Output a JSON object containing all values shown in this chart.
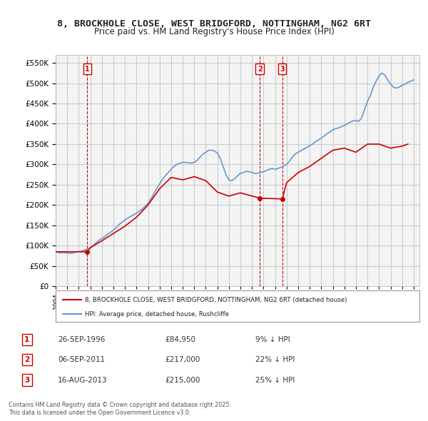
{
  "title": "8, BROCKHOLE CLOSE, WEST BRIDGFORD, NOTTINGHAM, NG2 6RT",
  "subtitle": "Price paid vs. HM Land Registry's House Price Index (HPI)",
  "ylabel_ticks": [
    "£0",
    "£50K",
    "£100K",
    "£150K",
    "£200K",
    "£250K",
    "£300K",
    "£350K",
    "£400K",
    "£450K",
    "£500K",
    "£550K"
  ],
  "ylim": [
    0,
    570000
  ],
  "xlim_start": 1994.0,
  "xlim_end": 2025.5,
  "transactions": [
    {
      "num": 1,
      "date": "26-SEP-1996",
      "price": 84950,
      "year": 1996.74,
      "label": "£84,950",
      "hpi_pct": "9% ↓ HPI"
    },
    {
      "num": 2,
      "date": "06-SEP-2011",
      "price": 217000,
      "year": 2011.68,
      "label": "£217,000",
      "hpi_pct": "22% ↓ HPI"
    },
    {
      "num": 3,
      "date": "16-AUG-2013",
      "price": 215000,
      "year": 2013.62,
      "label": "£215,000",
      "hpi_pct": "25% ↓ HPI"
    }
  ],
  "legend_line1": "8, BROCKHOLE CLOSE, WEST BRIDGFORD, NOTTINGHAM, NG2 6RT (detached house)",
  "legend_line2": "HPI: Average price, detached house, Rushcliffe",
  "footer": "Contains HM Land Registry data © Crown copyright and database right 2025.\nThis data is licensed under the Open Government Licence v3.0.",
  "price_line_color": "#cc0000",
  "hpi_line_color": "#6699cc",
  "transaction_marker_color": "#cc0000",
  "grid_color": "#cccccc",
  "background_color": "#ffffff",
  "plot_bg_color": "#f5f5f5",
  "hpi_data": {
    "years": [
      1994.0,
      1994.25,
      1994.5,
      1994.75,
      1995.0,
      1995.25,
      1995.5,
      1995.75,
      1996.0,
      1996.25,
      1996.5,
      1996.75,
      1997.0,
      1997.25,
      1997.5,
      1997.75,
      1998.0,
      1998.25,
      1998.5,
      1998.75,
      1999.0,
      1999.25,
      1999.5,
      1999.75,
      2000.0,
      2000.25,
      2000.5,
      2000.75,
      2001.0,
      2001.25,
      2001.5,
      2001.75,
      2002.0,
      2002.25,
      2002.5,
      2002.75,
      2003.0,
      2003.25,
      2003.5,
      2003.75,
      2004.0,
      2004.25,
      2004.5,
      2004.75,
      2005.0,
      2005.25,
      2005.5,
      2005.75,
      2006.0,
      2006.25,
      2006.5,
      2006.75,
      2007.0,
      2007.25,
      2007.5,
      2007.75,
      2008.0,
      2008.25,
      2008.5,
      2008.75,
      2009.0,
      2009.25,
      2009.5,
      2009.75,
      2010.0,
      2010.25,
      2010.5,
      2010.75,
      2011.0,
      2011.25,
      2011.5,
      2011.75,
      2012.0,
      2012.25,
      2012.5,
      2012.75,
      2013.0,
      2013.25,
      2013.5,
      2013.75,
      2014.0,
      2014.25,
      2014.5,
      2014.75,
      2015.0,
      2015.25,
      2015.5,
      2015.75,
      2016.0,
      2016.25,
      2016.5,
      2016.75,
      2017.0,
      2017.25,
      2017.5,
      2017.75,
      2018.0,
      2018.25,
      2018.5,
      2018.75,
      2019.0,
      2019.25,
      2019.5,
      2019.75,
      2020.0,
      2020.25,
      2020.5,
      2020.75,
      2021.0,
      2021.25,
      2021.5,
      2021.75,
      2022.0,
      2022.25,
      2022.5,
      2022.75,
      2023.0,
      2023.25,
      2023.5,
      2023.75,
      2024.0,
      2024.25,
      2024.5,
      2024.75,
      2025.0
    ],
    "prices": [
      85000,
      83000,
      82000,
      83000,
      82000,
      81000,
      82000,
      84000,
      85000,
      87000,
      89000,
      92000,
      95000,
      100000,
      107000,
      113000,
      118000,
      122000,
      128000,
      133000,
      138000,
      145000,
      152000,
      158000,
      163000,
      168000,
      172000,
      176000,
      180000,
      185000,
      190000,
      197000,
      205000,
      215000,
      228000,
      240000,
      252000,
      263000,
      272000,
      280000,
      288000,
      295000,
      300000,
      303000,
      305000,
      305000,
      304000,
      303000,
      305000,
      310000,
      318000,
      325000,
      330000,
      335000,
      335000,
      333000,
      328000,
      315000,
      295000,
      275000,
      262000,
      260000,
      265000,
      272000,
      278000,
      280000,
      283000,
      282000,
      280000,
      278000,
      278000,
      280000,
      282000,
      285000,
      288000,
      290000,
      288000,
      290000,
      293000,
      296000,
      300000,
      308000,
      318000,
      326000,
      330000,
      334000,
      338000,
      342000,
      346000,
      350000,
      356000,
      360000,
      365000,
      370000,
      376000,
      380000,
      385000,
      388000,
      390000,
      393000,
      396000,
      400000,
      404000,
      407000,
      408000,
      406000,
      415000,
      435000,
      455000,
      470000,
      490000,
      505000,
      518000,
      525000,
      520000,
      508000,
      498000,
      490000,
      488000,
      490000,
      495000,
      498000,
      502000,
      505000,
      508000
    ]
  },
  "price_data": {
    "years": [
      1994.0,
      1996.74,
      1997.0,
      1998.0,
      1999.0,
      2000.0,
      2001.0,
      2002.0,
      2003.0,
      2004.0,
      2005.0,
      2006.0,
      2007.0,
      2008.0,
      2009.0,
      2010.0,
      2011.68,
      2013.62,
      2014.0,
      2015.0,
      2016.0,
      2017.0,
      2018.0,
      2019.0,
      2020.0,
      2021.0,
      2022.0,
      2023.0,
      2024.0,
      2024.5
    ],
    "prices": [
      84950,
      84950,
      95000,
      112000,
      130000,
      148000,
      170000,
      200000,
      240000,
      268000,
      262000,
      270000,
      260000,
      232000,
      222000,
      230000,
      217000,
      215000,
      255000,
      280000,
      295000,
      315000,
      335000,
      340000,
      330000,
      350000,
      350000,
      340000,
      345000,
      350000
    ]
  }
}
